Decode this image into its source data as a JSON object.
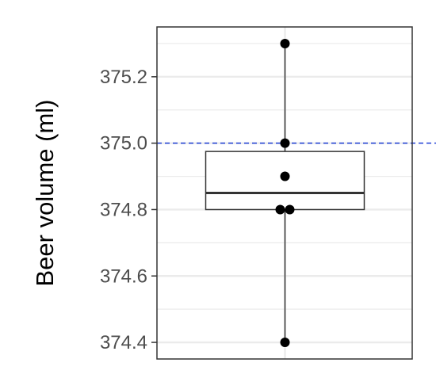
{
  "chart_data": {
    "type": "boxplot",
    "ylabel": "Beer volume (ml)",
    "xlabel": "",
    "ylim": [
      374.35,
      375.35
    ],
    "yticks": [
      374.4,
      374.6,
      374.8,
      375.0,
      375.2
    ],
    "ytick_labels": [
      "374.4",
      "374.6",
      "374.8",
      "375.0",
      "375.2"
    ],
    "minor_grid": [
      374.5,
      374.7,
      374.9,
      375.1,
      375.3
    ],
    "grid": true,
    "reference_line": {
      "y": 375.0,
      "style": "dashed",
      "color": "#1f3fd6"
    },
    "box": {
      "q1": 374.8,
      "median": 374.85,
      "q3": 374.975,
      "whisker_low": 374.4,
      "whisker_high": 375.3
    },
    "points": [
      {
        "x": 0.0,
        "y": 375.3
      },
      {
        "x": 0.0,
        "y": 375.0
      },
      {
        "x": 0.0,
        "y": 374.9
      },
      {
        "x": -0.04,
        "y": 374.8
      },
      {
        "x": 0.04,
        "y": 374.8
      },
      {
        "x": 0.0,
        "y": 374.4
      }
    ],
    "colors": {
      "panel_border": "#333333",
      "grid": "#ebebeb",
      "box": "#333333",
      "points": "#000000"
    }
  }
}
